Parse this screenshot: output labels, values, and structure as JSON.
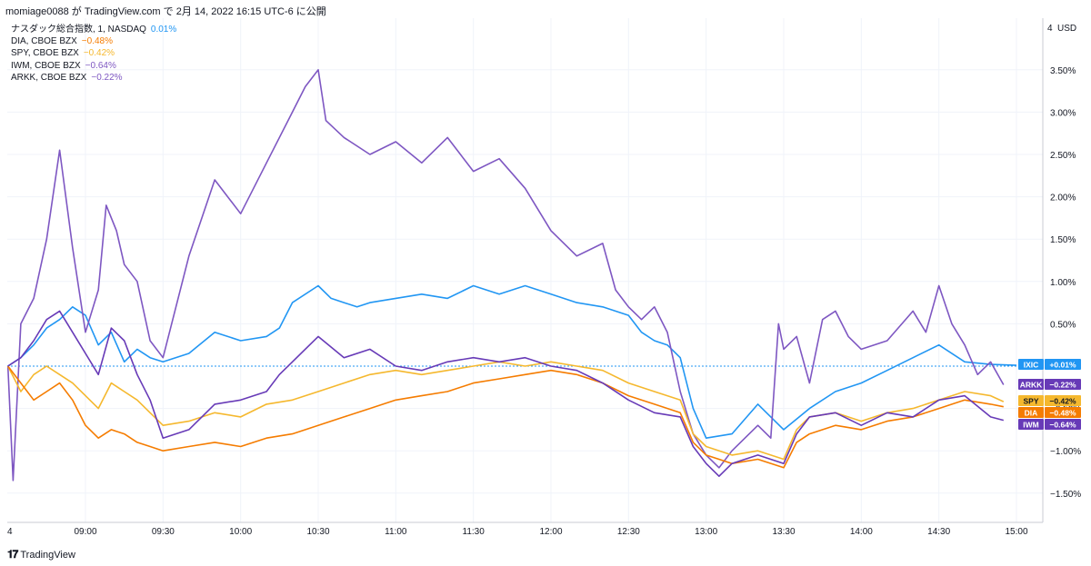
{
  "header": {
    "caption": "momiage0088 が TradingView.com で 2月 14, 2022 16:15 UTC-6 に公開"
  },
  "legend": [
    {
      "name": "ナスダック総合指数, 1, NASDAQ",
      "value": "0.01%",
      "color": "#2196f3"
    },
    {
      "name": "DIA, CBOE BZX",
      "value": "−0.48%",
      "color": "#f57c00"
    },
    {
      "name": "SPY, CBOE BZX",
      "value": "−0.42%",
      "color": "#f5b82e"
    },
    {
      "name": "IWM, CBOE BZX",
      "value": "−0.64%",
      "color": "#7e57c2"
    },
    {
      "name": "ARKK, CBOE BZX",
      "value": "−0.22%",
      "color": "#7e57c2"
    }
  ],
  "axis": {
    "currency_label": "USD",
    "top_tick_fragment": "4",
    "left_tick_fragment": "4",
    "y_ticks": [
      "3.50%",
      "3.00%",
      "2.50%",
      "2.00%",
      "1.50%",
      "1.00%",
      "0.50%",
      "−0.50%",
      "−1.00%",
      "−1.50%"
    ],
    "x_ticks": [
      "09:00",
      "09:30",
      "10:00",
      "10:30",
      "11:00",
      "11:30",
      "12:00",
      "12:30",
      "13:00",
      "13:30",
      "14:00",
      "14:30",
      "15:00"
    ]
  },
  "price_tags": [
    {
      "symbol": "IXIC",
      "value": "+0.01%",
      "color": "#2196f3",
      "text_color": "#ffffff"
    },
    {
      "symbol": "ARKK",
      "value": "−0.22%",
      "color": "#673ab7",
      "text_color": "#ffffff"
    },
    {
      "symbol": "SPY",
      "value": "−0.42%",
      "color": "#f5b82e",
      "text_color": "#131722"
    },
    {
      "symbol": "DIA",
      "value": "−0.48%",
      "color": "#f57c00",
      "text_color": "#ffffff"
    },
    {
      "symbol": "IWM",
      "value": "−0.64%",
      "color": "#673ab7",
      "text_color": "#ffffff"
    }
  ],
  "footer": {
    "brand": "TradingView",
    "icon": "tradingview-logo-icon"
  },
  "chart_data": {
    "type": "line",
    "ylabel_unit": "%",
    "ylim": [
      -1.75,
      3.85
    ],
    "xlim": [
      "08:30",
      "15:00"
    ],
    "grid": true,
    "legend_position": "top-left",
    "baseline": 0,
    "series": [
      {
        "name": "IXIC",
        "color": "#2196f3",
        "points": [
          [
            "08:30",
            0
          ],
          [
            "08:35",
            0.1
          ],
          [
            "08:40",
            0.25
          ],
          [
            "08:45",
            0.45
          ],
          [
            "08:50",
            0.55
          ],
          [
            "08:55",
            0.7
          ],
          [
            "09:00",
            0.6
          ],
          [
            "09:05",
            0.25
          ],
          [
            "09:10",
            0.4
          ],
          [
            "09:15",
            0.05
          ],
          [
            "09:20",
            0.2
          ],
          [
            "09:25",
            0.1
          ],
          [
            "09:30",
            0.05
          ],
          [
            "09:40",
            0.15
          ],
          [
            "09:50",
            0.4
          ],
          [
            "10:00",
            0.3
          ],
          [
            "10:10",
            0.35
          ],
          [
            "10:15",
            0.45
          ],
          [
            "10:20",
            0.75
          ],
          [
            "10:30",
            0.95
          ],
          [
            "10:35",
            0.8
          ],
          [
            "10:40",
            0.75
          ],
          [
            "10:45",
            0.7
          ],
          [
            "10:50",
            0.75
          ],
          [
            "11:00",
            0.8
          ],
          [
            "11:10",
            0.85
          ],
          [
            "11:20",
            0.8
          ],
          [
            "11:30",
            0.95
          ],
          [
            "11:40",
            0.85
          ],
          [
            "11:50",
            0.95
          ],
          [
            "12:00",
            0.85
          ],
          [
            "12:10",
            0.75
          ],
          [
            "12:20",
            0.7
          ],
          [
            "12:30",
            0.6
          ],
          [
            "12:35",
            0.4
          ],
          [
            "12:40",
            0.3
          ],
          [
            "12:45",
            0.25
          ],
          [
            "12:50",
            0.1
          ],
          [
            "12:55",
            -0.5
          ],
          [
            "13:00",
            -0.85
          ],
          [
            "13:10",
            -0.8
          ],
          [
            "13:20",
            -0.45
          ],
          [
            "13:30",
            -0.75
          ],
          [
            "13:40",
            -0.5
          ],
          [
            "13:50",
            -0.3
          ],
          [
            "14:00",
            -0.2
          ],
          [
            "14:10",
            -0.05
          ],
          [
            "14:20",
            0.1
          ],
          [
            "14:30",
            0.25
          ],
          [
            "14:40",
            0.05
          ],
          [
            "14:50",
            0.02
          ],
          [
            "15:00",
            0.01
          ]
        ]
      },
      {
        "name": "ARKK",
        "color": "#7e57c2",
        "points": [
          [
            "08:30",
            0
          ],
          [
            "08:32",
            -1.35
          ],
          [
            "08:35",
            0.5
          ],
          [
            "08:40",
            0.8
          ],
          [
            "08:45",
            1.5
          ],
          [
            "08:50",
            2.55
          ],
          [
            "08:55",
            1.4
          ],
          [
            "09:00",
            0.4
          ],
          [
            "09:05",
            0.9
          ],
          [
            "09:08",
            1.9
          ],
          [
            "09:12",
            1.6
          ],
          [
            "09:15",
            1.2
          ],
          [
            "09:20",
            1.0
          ],
          [
            "09:25",
            0.3
          ],
          [
            "09:30",
            0.1
          ],
          [
            "09:40",
            1.3
          ],
          [
            "09:50",
            2.2
          ],
          [
            "10:00",
            1.8
          ],
          [
            "10:10",
            2.4
          ],
          [
            "10:20",
            3.0
          ],
          [
            "10:25",
            3.3
          ],
          [
            "10:30",
            3.5
          ],
          [
            "10:33",
            2.9
          ],
          [
            "10:40",
            2.7
          ],
          [
            "10:50",
            2.5
          ],
          [
            "11:00",
            2.65
          ],
          [
            "11:10",
            2.4
          ],
          [
            "11:20",
            2.7
          ],
          [
            "11:30",
            2.3
          ],
          [
            "11:40",
            2.45
          ],
          [
            "11:50",
            2.1
          ],
          [
            "12:00",
            1.6
          ],
          [
            "12:10",
            1.3
          ],
          [
            "12:20",
            1.45
          ],
          [
            "12:25",
            0.9
          ],
          [
            "12:30",
            0.7
          ],
          [
            "12:35",
            0.55
          ],
          [
            "12:40",
            0.7
          ],
          [
            "12:45",
            0.4
          ],
          [
            "12:50",
            -0.3
          ],
          [
            "12:55",
            -0.8
          ],
          [
            "13:00",
            -1.05
          ],
          [
            "13:05",
            -1.2
          ],
          [
            "13:10",
            -1.0
          ],
          [
            "13:20",
            -0.7
          ],
          [
            "13:25",
            -0.85
          ],
          [
            "13:28",
            0.5
          ],
          [
            "13:30",
            0.2
          ],
          [
            "13:35",
            0.35
          ],
          [
            "13:40",
            -0.2
          ],
          [
            "13:45",
            0.55
          ],
          [
            "13:50",
            0.65
          ],
          [
            "13:55",
            0.35
          ],
          [
            "14:00",
            0.2
          ],
          [
            "14:10",
            0.3
          ],
          [
            "14:20",
            0.65
          ],
          [
            "14:25",
            0.4
          ],
          [
            "14:30",
            0.95
          ],
          [
            "14:35",
            0.5
          ],
          [
            "14:40",
            0.25
          ],
          [
            "14:45",
            -0.1
          ],
          [
            "14:50",
            0.05
          ],
          [
            "14:55",
            -0.22
          ]
        ]
      },
      {
        "name": "SPY",
        "color": "#f5b82e",
        "points": [
          [
            "08:30",
            0
          ],
          [
            "08:35",
            -0.3
          ],
          [
            "08:40",
            -0.1
          ],
          [
            "08:45",
            0.0
          ],
          [
            "08:50",
            -0.1
          ],
          [
            "08:55",
            -0.2
          ],
          [
            "09:00",
            -0.35
          ],
          [
            "09:05",
            -0.5
          ],
          [
            "09:10",
            -0.2
          ],
          [
            "09:15",
            -0.3
          ],
          [
            "09:20",
            -0.4
          ],
          [
            "09:25",
            -0.55
          ],
          [
            "09:30",
            -0.7
          ],
          [
            "09:40",
            -0.65
          ],
          [
            "09:50",
            -0.55
          ],
          [
            "10:00",
            -0.6
          ],
          [
            "10:10",
            -0.45
          ],
          [
            "10:20",
            -0.4
          ],
          [
            "10:30",
            -0.3
          ],
          [
            "10:40",
            -0.2
          ],
          [
            "10:50",
            -0.1
          ],
          [
            "11:00",
            -0.05
          ],
          [
            "11:10",
            -0.1
          ],
          [
            "11:20",
            -0.05
          ],
          [
            "11:30",
            0.0
          ],
          [
            "11:40",
            0.05
          ],
          [
            "11:50",
            0.0
          ],
          [
            "12:00",
            0.05
          ],
          [
            "12:10",
            0.0
          ],
          [
            "12:20",
            -0.05
          ],
          [
            "12:30",
            -0.2
          ],
          [
            "12:40",
            -0.3
          ],
          [
            "12:50",
            -0.4
          ],
          [
            "12:55",
            -0.8
          ],
          [
            "13:00",
            -0.95
          ],
          [
            "13:10",
            -1.05
          ],
          [
            "13:20",
            -1.0
          ],
          [
            "13:30",
            -1.1
          ],
          [
            "13:35",
            -0.75
          ],
          [
            "13:40",
            -0.6
          ],
          [
            "13:50",
            -0.55
          ],
          [
            "14:00",
            -0.65
          ],
          [
            "14:10",
            -0.55
          ],
          [
            "14:20",
            -0.5
          ],
          [
            "14:30",
            -0.4
          ],
          [
            "14:40",
            -0.3
          ],
          [
            "14:50",
            -0.35
          ],
          [
            "14:55",
            -0.42
          ]
        ]
      },
      {
        "name": "DIA",
        "color": "#f57c00",
        "points": [
          [
            "08:30",
            0
          ],
          [
            "08:35",
            -0.2
          ],
          [
            "08:40",
            -0.4
          ],
          [
            "08:45",
            -0.3
          ],
          [
            "08:50",
            -0.2
          ],
          [
            "08:55",
            -0.4
          ],
          [
            "09:00",
            -0.7
          ],
          [
            "09:05",
            -0.85
          ],
          [
            "09:10",
            -0.75
          ],
          [
            "09:15",
            -0.8
          ],
          [
            "09:20",
            -0.9
          ],
          [
            "09:25",
            -0.95
          ],
          [
            "09:30",
            -1.0
          ],
          [
            "09:40",
            -0.95
          ],
          [
            "09:50",
            -0.9
          ],
          [
            "10:00",
            -0.95
          ],
          [
            "10:10",
            -0.85
          ],
          [
            "10:20",
            -0.8
          ],
          [
            "10:30",
            -0.7
          ],
          [
            "10:40",
            -0.6
          ],
          [
            "10:50",
            -0.5
          ],
          [
            "11:00",
            -0.4
          ],
          [
            "11:10",
            -0.35
          ],
          [
            "11:20",
            -0.3
          ],
          [
            "11:30",
            -0.2
          ],
          [
            "11:40",
            -0.15
          ],
          [
            "11:50",
            -0.1
          ],
          [
            "12:00",
            -0.05
          ],
          [
            "12:10",
            -0.1
          ],
          [
            "12:20",
            -0.2
          ],
          [
            "12:30",
            -0.35
          ],
          [
            "12:40",
            -0.45
          ],
          [
            "12:50",
            -0.55
          ],
          [
            "12:55",
            -0.9
          ],
          [
            "13:00",
            -1.05
          ],
          [
            "13:10",
            -1.15
          ],
          [
            "13:20",
            -1.1
          ],
          [
            "13:30",
            -1.2
          ],
          [
            "13:35",
            -0.9
          ],
          [
            "13:40",
            -0.8
          ],
          [
            "13:50",
            -0.7
          ],
          [
            "14:00",
            -0.75
          ],
          [
            "14:10",
            -0.65
          ],
          [
            "14:20",
            -0.6
          ],
          [
            "14:30",
            -0.5
          ],
          [
            "14:40",
            -0.4
          ],
          [
            "14:50",
            -0.45
          ],
          [
            "14:55",
            -0.48
          ]
        ]
      },
      {
        "name": "IWM",
        "color": "#673ab7",
        "points": [
          [
            "08:30",
            0
          ],
          [
            "08:35",
            0.1
          ],
          [
            "08:40",
            0.3
          ],
          [
            "08:45",
            0.55
          ],
          [
            "08:50",
            0.65
          ],
          [
            "08:55",
            0.4
          ],
          [
            "09:00",
            0.15
          ],
          [
            "09:05",
            -0.1
          ],
          [
            "09:10",
            0.45
          ],
          [
            "09:15",
            0.3
          ],
          [
            "09:20",
            -0.1
          ],
          [
            "09:25",
            -0.4
          ],
          [
            "09:30",
            -0.85
          ],
          [
            "09:40",
            -0.75
          ],
          [
            "09:50",
            -0.45
          ],
          [
            "10:00",
            -0.4
          ],
          [
            "10:10",
            -0.3
          ],
          [
            "10:15",
            -0.1
          ],
          [
            "10:20",
            0.05
          ],
          [
            "10:30",
            0.35
          ],
          [
            "10:40",
            0.1
          ],
          [
            "10:50",
            0.2
          ],
          [
            "11:00",
            0.0
          ],
          [
            "11:10",
            -0.05
          ],
          [
            "11:20",
            0.05
          ],
          [
            "11:30",
            0.1
          ],
          [
            "11:40",
            0.05
          ],
          [
            "11:50",
            0.1
          ],
          [
            "12:00",
            0.0
          ],
          [
            "12:10",
            -0.05
          ],
          [
            "12:20",
            -0.2
          ],
          [
            "12:30",
            -0.4
          ],
          [
            "12:40",
            -0.55
          ],
          [
            "12:50",
            -0.6
          ],
          [
            "12:55",
            -0.95
          ],
          [
            "13:00",
            -1.15
          ],
          [
            "13:05",
            -1.3
          ],
          [
            "13:10",
            -1.15
          ],
          [
            "13:20",
            -1.05
          ],
          [
            "13:30",
            -1.15
          ],
          [
            "13:35",
            -0.8
          ],
          [
            "13:40",
            -0.6
          ],
          [
            "13:50",
            -0.55
          ],
          [
            "14:00",
            -0.7
          ],
          [
            "14:10",
            -0.55
          ],
          [
            "14:20",
            -0.6
          ],
          [
            "14:30",
            -0.4
          ],
          [
            "14:40",
            -0.35
          ],
          [
            "14:50",
            -0.6
          ],
          [
            "14:55",
            -0.64
          ]
        ]
      }
    ]
  }
}
